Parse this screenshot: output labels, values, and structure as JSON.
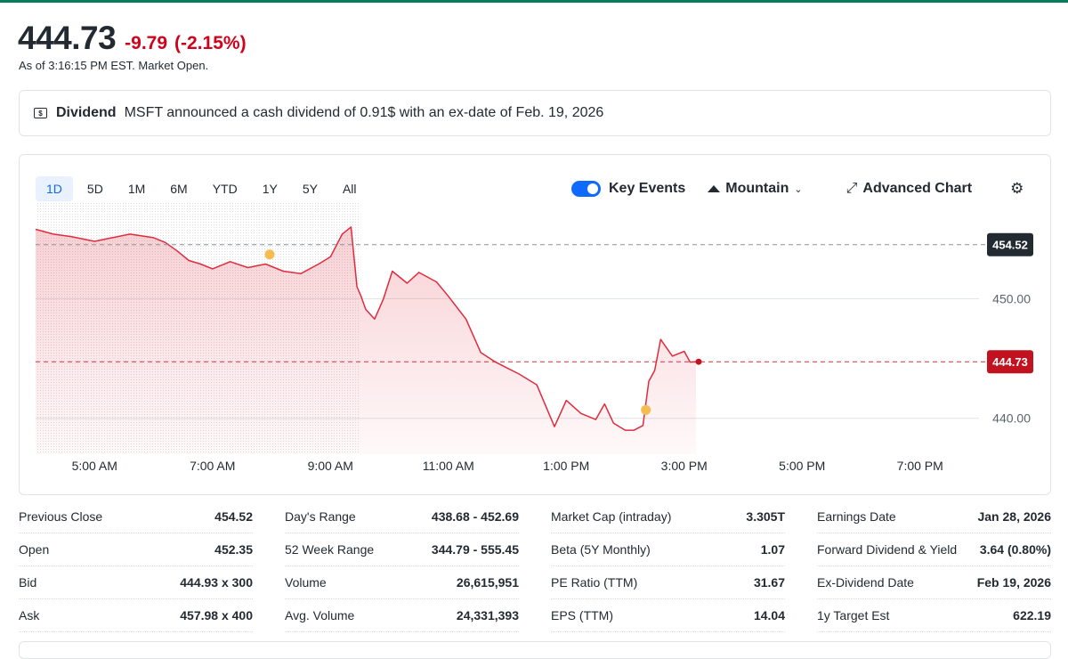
{
  "quote": {
    "price": "444.73",
    "change": "-9.79",
    "change_pct": "(-2.15%)",
    "as_of": "As of 3:16:15 PM EST. Market Open."
  },
  "dividend": {
    "icon": "dollar-bill-icon",
    "icon_glyph": "$",
    "label": "Dividend",
    "text": "MSFT announced a cash dividend of 0.91$ with an ex-date of Feb. 19, 2026"
  },
  "range_tabs": [
    "1D",
    "5D",
    "1M",
    "6M",
    "YTD",
    "1Y",
    "5Y",
    "All"
  ],
  "active_range": "1D",
  "toolbar": {
    "key_events_label": "Key Events",
    "chart_type_label": "Mountain",
    "advanced_label": "Advanced Chart",
    "chevron_glyph": "⌄",
    "advanced_glyph": "⤢",
    "gear_glyph": "⚙"
  },
  "colors": {
    "accent": "#0f69ff",
    "negative": "#d0021b",
    "line": "#e02b3c",
    "brand_bar": "#0b7a5b"
  },
  "chart_data": {
    "type": "area",
    "title": "",
    "xlabel": "",
    "ylabel": "",
    "x_tick_labels": [
      "5:00 AM",
      "7:00 AM",
      "9:00 AM",
      "11:00 AM",
      "1:00 PM",
      "3:00 PM",
      "5:00 PM",
      "7:00 PM"
    ],
    "x_tick_hours": [
      5,
      7,
      9,
      11,
      13,
      15,
      17,
      19
    ],
    "xlim": [
      4,
      20
    ],
    "y_tick_labels": [
      "450.00",
      "440.00"
    ],
    "y_ticks": [
      450,
      440
    ],
    "ylim": [
      437,
      458
    ],
    "previous_close": 454.52,
    "previous_close_label": "454.52",
    "last_price": 444.73,
    "last_price_label": "444.73",
    "market_open_hour": 9.5,
    "key_event_markers": [
      {
        "hour": 7.97,
        "value": 453.7
      },
      {
        "hour": 14.35,
        "value": 440.7
      }
    ],
    "series": [
      {
        "name": "MSFT",
        "x": [
          4.0,
          4.3,
          4.6,
          5.0,
          5.3,
          5.6,
          6.0,
          6.2,
          6.4,
          6.6,
          6.8,
          7.0,
          7.3,
          7.6,
          7.9,
          8.2,
          8.5,
          8.8,
          9.0,
          9.2,
          9.35,
          9.45,
          9.52,
          9.6,
          9.75,
          9.9,
          10.05,
          10.3,
          10.5,
          10.8,
          11.0,
          11.3,
          11.55,
          11.8,
          12.0,
          12.2,
          12.5,
          12.8,
          13.0,
          13.25,
          13.5,
          13.65,
          13.8,
          14.0,
          14.15,
          14.3,
          14.4,
          14.5,
          14.6,
          14.8,
          15.0,
          15.1,
          15.2
        ],
        "values": [
          455.8,
          455.4,
          455.2,
          454.8,
          455.1,
          455.4,
          455.1,
          454.7,
          454.0,
          453.2,
          452.9,
          452.5,
          453.1,
          452.6,
          452.9,
          452.3,
          452.1,
          452.9,
          453.5,
          455.4,
          456.0,
          451.0,
          450.2,
          449.1,
          448.3,
          450.0,
          452.3,
          451.3,
          452.2,
          451.4,
          450.2,
          448.3,
          445.5,
          444.7,
          444.2,
          443.7,
          442.8,
          439.3,
          441.5,
          440.4,
          439.9,
          441.2,
          439.6,
          439.0,
          439.0,
          439.4,
          443.1,
          444.0,
          446.6,
          445.2,
          445.6,
          444.7,
          444.73
        ]
      }
    ]
  },
  "stats": [
    [
      {
        "label": "Previous Close",
        "value": "454.52"
      },
      {
        "label": "Open",
        "value": "452.35"
      },
      {
        "label": "Bid",
        "value": "444.93 x 300"
      },
      {
        "label": "Ask",
        "value": "457.98 x 400"
      }
    ],
    [
      {
        "label": "Day's Range",
        "value": "438.68 - 452.69"
      },
      {
        "label": "52 Week Range",
        "value": "344.79 - 555.45"
      },
      {
        "label": "Volume",
        "value": "26,615,951"
      },
      {
        "label": "Avg. Volume",
        "value": "24,331,393"
      }
    ],
    [
      {
        "label": "Market Cap (intraday)",
        "value": "3.305T"
      },
      {
        "label": "Beta (5Y Monthly)",
        "value": "1.07"
      },
      {
        "label": "PE Ratio (TTM)",
        "value": "31.67"
      },
      {
        "label": "EPS (TTM)",
        "value": "14.04"
      }
    ],
    [
      {
        "label": "Earnings Date",
        "value": "Jan 28, 2026"
      },
      {
        "label": "Forward Dividend & Yield",
        "value": "3.64 (0.80%)"
      },
      {
        "label": "Ex-Dividend Date",
        "value": "Feb 19, 2026"
      },
      {
        "label": "1y Target Est",
        "value": "622.19"
      }
    ]
  ]
}
